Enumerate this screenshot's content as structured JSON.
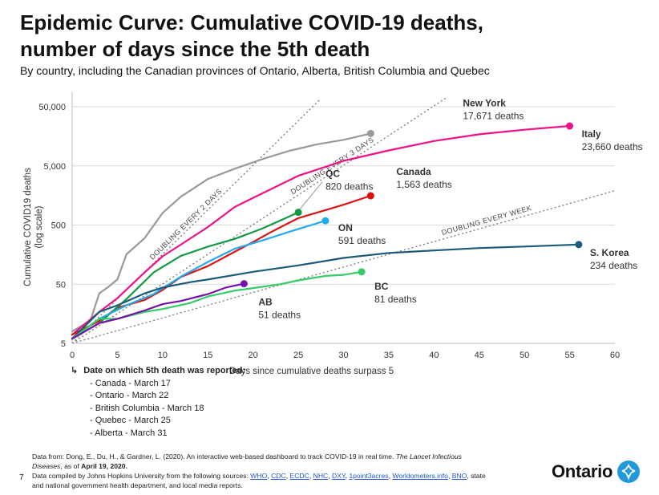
{
  "header": {
    "title": "Epidemic Curve: Cumulative COVID-19 deaths, number of days since the 5th death",
    "subtitle": "By country, including the Canadian provinces of Ontario, Alberta, British Columbia and Quebec"
  },
  "chart_data": {
    "type": "line",
    "xlabel": "Days since cumulative deaths surpass 5",
    "ylabel": "Cumulative COVID19 deaths",
    "ylabel_sub": "(log scale)",
    "xlim": [
      0,
      60
    ],
    "ylim": [
      5,
      80000
    ],
    "y_scale": "log",
    "x_ticks": [
      0,
      5,
      10,
      15,
      20,
      25,
      30,
      35,
      40,
      45,
      50,
      55,
      60
    ],
    "y_ticks": [
      5,
      50,
      500,
      5000,
      50000
    ],
    "y_tick_labels": [
      "5",
      "50",
      "500",
      "5,000",
      "50,000"
    ],
    "grid": true,
    "reference_lines": [
      {
        "label": "DOUBLING EVERY 2 DAYS",
        "doubling_days": 2,
        "color": "#777777"
      },
      {
        "label": "DOUBLING EVERY 3 DAYS",
        "doubling_days": 3,
        "color": "#777777"
      },
      {
        "label": "DOUBLING EVERY WEEK",
        "doubling_days": 7,
        "color": "#777777"
      }
    ],
    "series": [
      {
        "name": "New York",
        "value_label": "17,671 deaths",
        "color": "#999999",
        "x": [
          0,
          2,
          3,
          4,
          5,
          6,
          8,
          10,
          12,
          15,
          18,
          21,
          24,
          27,
          30,
          33
        ],
        "y": [
          8,
          12,
          35,
          45,
          60,
          160,
          300,
          800,
          1500,
          3000,
          4500,
          6500,
          9000,
          11500,
          13800,
          17671
        ]
      },
      {
        "name": "Italy",
        "value_label": "23,660 deaths",
        "color": "#ee1188",
        "x": [
          0,
          3,
          5,
          8,
          10,
          12,
          15,
          18,
          20,
          25,
          30,
          35,
          40,
          45,
          50,
          55
        ],
        "y": [
          7,
          17,
          29,
          79,
          148,
          233,
          463,
          1016,
          1441,
          3405,
          6077,
          9134,
          13155,
          17127,
          20465,
          23660
        ]
      },
      {
        "name": "Canada",
        "value_label": "1,563 deaths",
        "color": "#dd1111",
        "x": [
          0,
          3,
          5,
          8,
          10,
          12,
          15,
          18,
          20,
          22,
          25,
          28,
          30,
          33
        ],
        "y": [
          7,
          12,
          20,
          27,
          40,
          66,
          101,
          178,
          258,
          381,
          654,
          895,
          1103,
          1563
        ]
      },
      {
        "name": "QC",
        "value_label": "820 deaths",
        "color": "#119944",
        "x": [
          0,
          3,
          6,
          9,
          12,
          15,
          18,
          21,
          25
        ],
        "y": [
          6,
          11,
          28,
          79,
          150,
          216,
          292,
          435,
          820
        ]
      },
      {
        "name": "ON",
        "value_label": "591 deaths",
        "color": "#22aaee",
        "x": [
          0,
          3,
          6,
          9,
          12,
          15,
          18,
          21,
          24,
          28
        ],
        "y": [
          6,
          13,
          22,
          34,
          67,
          119,
          200,
          274,
          385,
          591
        ]
      },
      {
        "name": "S. Korea",
        "value_label": "234 deaths",
        "color": "#1b5a78",
        "x": [
          0,
          3,
          5,
          8,
          10,
          13,
          15,
          20,
          25,
          30,
          35,
          40,
          45,
          50,
          56
        ],
        "y": [
          6,
          17,
          22,
          35,
          44,
          54,
          60,
          81,
          104,
          139,
          169,
          186,
          204,
          217,
          234
        ]
      },
      {
        "name": "BC",
        "value_label": "81 deaths",
        "color": "#33cc66",
        "x": [
          0,
          3,
          5,
          8,
          10,
          13,
          15,
          18,
          20,
          23,
          25,
          28,
          30,
          32
        ],
        "y": [
          6,
          13,
          13,
          17,
          19,
          24,
          31,
          39,
          43,
          50,
          58,
          69,
          72,
          81
        ]
      },
      {
        "name": "AB",
        "value_label": "51 deaths",
        "color": "#7711aa",
        "x": [
          0,
          3,
          5,
          8,
          10,
          12,
          15,
          17,
          19
        ],
        "y": [
          6,
          11,
          13,
          18,
          23,
          26,
          34,
          44,
          51
        ]
      }
    ]
  },
  "legend": {
    "heading": "Date on which 5th death was reported:",
    "items": [
      "- Canada - March 17",
      "- Ontario - March 22",
      "- British Columbia - March 18",
      "- Quebec - March 25",
      "- Alberta - March 31"
    ]
  },
  "source": {
    "line1_a": "Data from: Dong, E., Du, H., & Gardner, L. (2020). An interactive web-based dashboard to track COVID-19 in real time. ",
    "line1_italic": "The Lancet Infectious",
    "line2_italic": "Diseases",
    "line2_a": ", as of ",
    "line2_bold": "April 19, 2020.",
    "line3_a": "Data compiled by Johns Hopkins University from the following sources: ",
    "links": [
      "WHO",
      "CDC",
      "ECDC",
      "NHC",
      "DXY",
      "1point3acres",
      "Worldometers.info",
      "BNO"
    ],
    "line3_b": ", state",
    "line4": "and national government health department, and local media reports."
  },
  "page_number": "7",
  "logo": {
    "wordmark": "Ontario",
    "icon": "trillium-icon"
  }
}
